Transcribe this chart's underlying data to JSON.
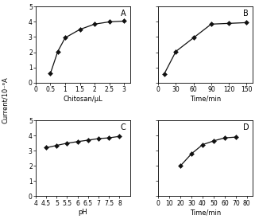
{
  "panel_A": {
    "x": [
      0.5,
      0.75,
      1.0,
      1.5,
      2.0,
      2.5,
      3.0
    ],
    "y": [
      0.6,
      2.05,
      2.95,
      3.5,
      3.85,
      4.0,
      4.05
    ],
    "xlabel": "Chitosan/μL",
    "label": "A",
    "xlim": [
      0,
      3.2
    ],
    "xticks": [
      0,
      0.5,
      1.0,
      1.5,
      2.0,
      2.5,
      3.0
    ],
    "xticklabels": [
      "0",
      "0.5",
      "1",
      "1.5",
      "2",
      "2.5",
      "3"
    ],
    "ylim": [
      0,
      5
    ],
    "yticks": [
      0,
      1,
      2,
      3,
      4,
      5
    ],
    "yticklabels": [
      "0",
      "1",
      "2",
      "3",
      "4",
      "5"
    ]
  },
  "panel_B": {
    "x": [
      10,
      30,
      60,
      90,
      120,
      150
    ],
    "y": [
      0.55,
      2.05,
      2.95,
      3.85,
      3.9,
      3.95
    ],
    "xlabel": "Time/min",
    "label": "B",
    "xlim": [
      0,
      160
    ],
    "xticks": [
      0,
      30,
      60,
      90,
      120,
      150
    ],
    "xticklabels": [
      "0",
      "30",
      "60",
      "90",
      "120",
      "150"
    ],
    "ylim": [
      0,
      5
    ],
    "yticks": [
      0,
      1,
      2,
      3,
      4,
      5
    ],
    "yticklabels": [
      "0",
      "1",
      "2",
      "3",
      "4",
      "5"
    ]
  },
  "panel_C": {
    "x": [
      4.5,
      5.0,
      5.5,
      6.0,
      6.5,
      7.0,
      7.5,
      8.0
    ],
    "y": [
      3.2,
      3.35,
      3.5,
      3.6,
      3.7,
      3.8,
      3.85,
      3.95
    ],
    "xlabel": "pH",
    "label": "C",
    "xlim": [
      4.0,
      8.5
    ],
    "xticks": [
      4,
      4.5,
      5,
      5.5,
      6,
      6.5,
      7,
      7.5,
      8
    ],
    "xticklabels": [
      "4",
      "4.5",
      "5",
      "5.5",
      "6",
      "6.5",
      "7",
      "7.5",
      "8"
    ],
    "ylim": [
      0,
      5
    ],
    "yticks": [
      0,
      1,
      2,
      3,
      4,
      5
    ],
    "yticklabels": [
      "0",
      "1",
      "2",
      "3",
      "4",
      "5"
    ]
  },
  "panel_D": {
    "x": [
      20,
      30,
      40,
      50,
      60,
      70
    ],
    "y": [
      2.0,
      2.8,
      3.4,
      3.65,
      3.85,
      3.9
    ],
    "xlabel": "Time/min",
    "label": "D",
    "xlim": [
      0,
      85
    ],
    "xticks": [
      0,
      10,
      20,
      30,
      40,
      50,
      60,
      70,
      80
    ],
    "xticklabels": [
      "0",
      "10",
      "20",
      "30",
      "40",
      "50",
      "60",
      "70",
      "80"
    ],
    "ylim": [
      0,
      5
    ],
    "yticks": [
      0,
      1,
      2,
      3,
      4,
      5
    ],
    "yticklabels": [
      "0",
      "1",
      "2",
      "3",
      "4",
      "5"
    ]
  },
  "ylabel": "Current/10⁻⁶A",
  "line_color": "#111111",
  "marker": "D",
  "markersize": 3.0,
  "linewidth": 0.9,
  "bg_color": "#ffffff",
  "tick_fontsize": 5.5,
  "label_fontsize": 6.0,
  "panel_label_fontsize": 7.0
}
